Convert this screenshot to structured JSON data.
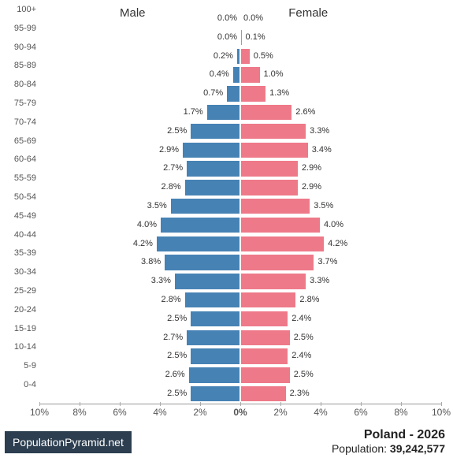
{
  "chart": {
    "type": "population-pyramid",
    "male_label": "Male",
    "female_label": "Female",
    "male_color": "#4682b4",
    "female_color": "#ee7989",
    "background_color": "#ffffff",
    "label_fontsize": 11,
    "header_fontsize": 15,
    "x_axis": {
      "max_pct": 10,
      "ticks": [
        {
          "pos": -10,
          "label": "10%"
        },
        {
          "pos": -8,
          "label": "8%"
        },
        {
          "pos": -6,
          "label": "6%"
        },
        {
          "pos": -4,
          "label": "4%"
        },
        {
          "pos": -2,
          "label": "2%"
        },
        {
          "pos": 0,
          "label": "0%"
        },
        {
          "pos": 2,
          "label": "2%"
        },
        {
          "pos": 4,
          "label": "4%"
        },
        {
          "pos": 6,
          "label": "6%"
        },
        {
          "pos": 8,
          "label": "8%"
        },
        {
          "pos": 10,
          "label": "10%"
        }
      ]
    },
    "age_groups": [
      {
        "label": "100+",
        "male": 0.0,
        "female": 0.0
      },
      {
        "label": "95-99",
        "male": 0.0,
        "female": 0.1
      },
      {
        "label": "90-94",
        "male": 0.2,
        "female": 0.5
      },
      {
        "label": "85-89",
        "male": 0.4,
        "female": 1.0
      },
      {
        "label": "80-84",
        "male": 0.7,
        "female": 1.3
      },
      {
        "label": "75-79",
        "male": 1.7,
        "female": 2.6
      },
      {
        "label": "70-74",
        "male": 2.5,
        "female": 3.3
      },
      {
        "label": "65-69",
        "male": 2.9,
        "female": 3.4
      },
      {
        "label": "60-64",
        "male": 2.7,
        "female": 2.9
      },
      {
        "label": "55-59",
        "male": 2.8,
        "female": 2.9
      },
      {
        "label": "50-54",
        "male": 3.5,
        "female": 3.5
      },
      {
        "label": "45-49",
        "male": 4.0,
        "female": 4.0
      },
      {
        "label": "40-44",
        "male": 4.2,
        "female": 4.2
      },
      {
        "label": "35-39",
        "male": 3.8,
        "female": 3.7
      },
      {
        "label": "30-34",
        "male": 3.3,
        "female": 3.3
      },
      {
        "label": "25-29",
        "male": 2.8,
        "female": 2.8
      },
      {
        "label": "20-24",
        "male": 2.5,
        "female": 2.4
      },
      {
        "label": "15-19",
        "male": 2.7,
        "female": 2.5
      },
      {
        "label": "10-14",
        "male": 2.5,
        "female": 2.4
      },
      {
        "label": "5-9",
        "male": 2.6,
        "female": 2.5
      },
      {
        "label": "0-4",
        "male": 2.5,
        "female": 2.3
      }
    ]
  },
  "footer": {
    "badge_text": "PopulationPyramid.net",
    "badge_bg": "#2c3e50",
    "country": "Poland",
    "year": "2026",
    "population_label": "Population:",
    "population_value": "39,242,577"
  }
}
